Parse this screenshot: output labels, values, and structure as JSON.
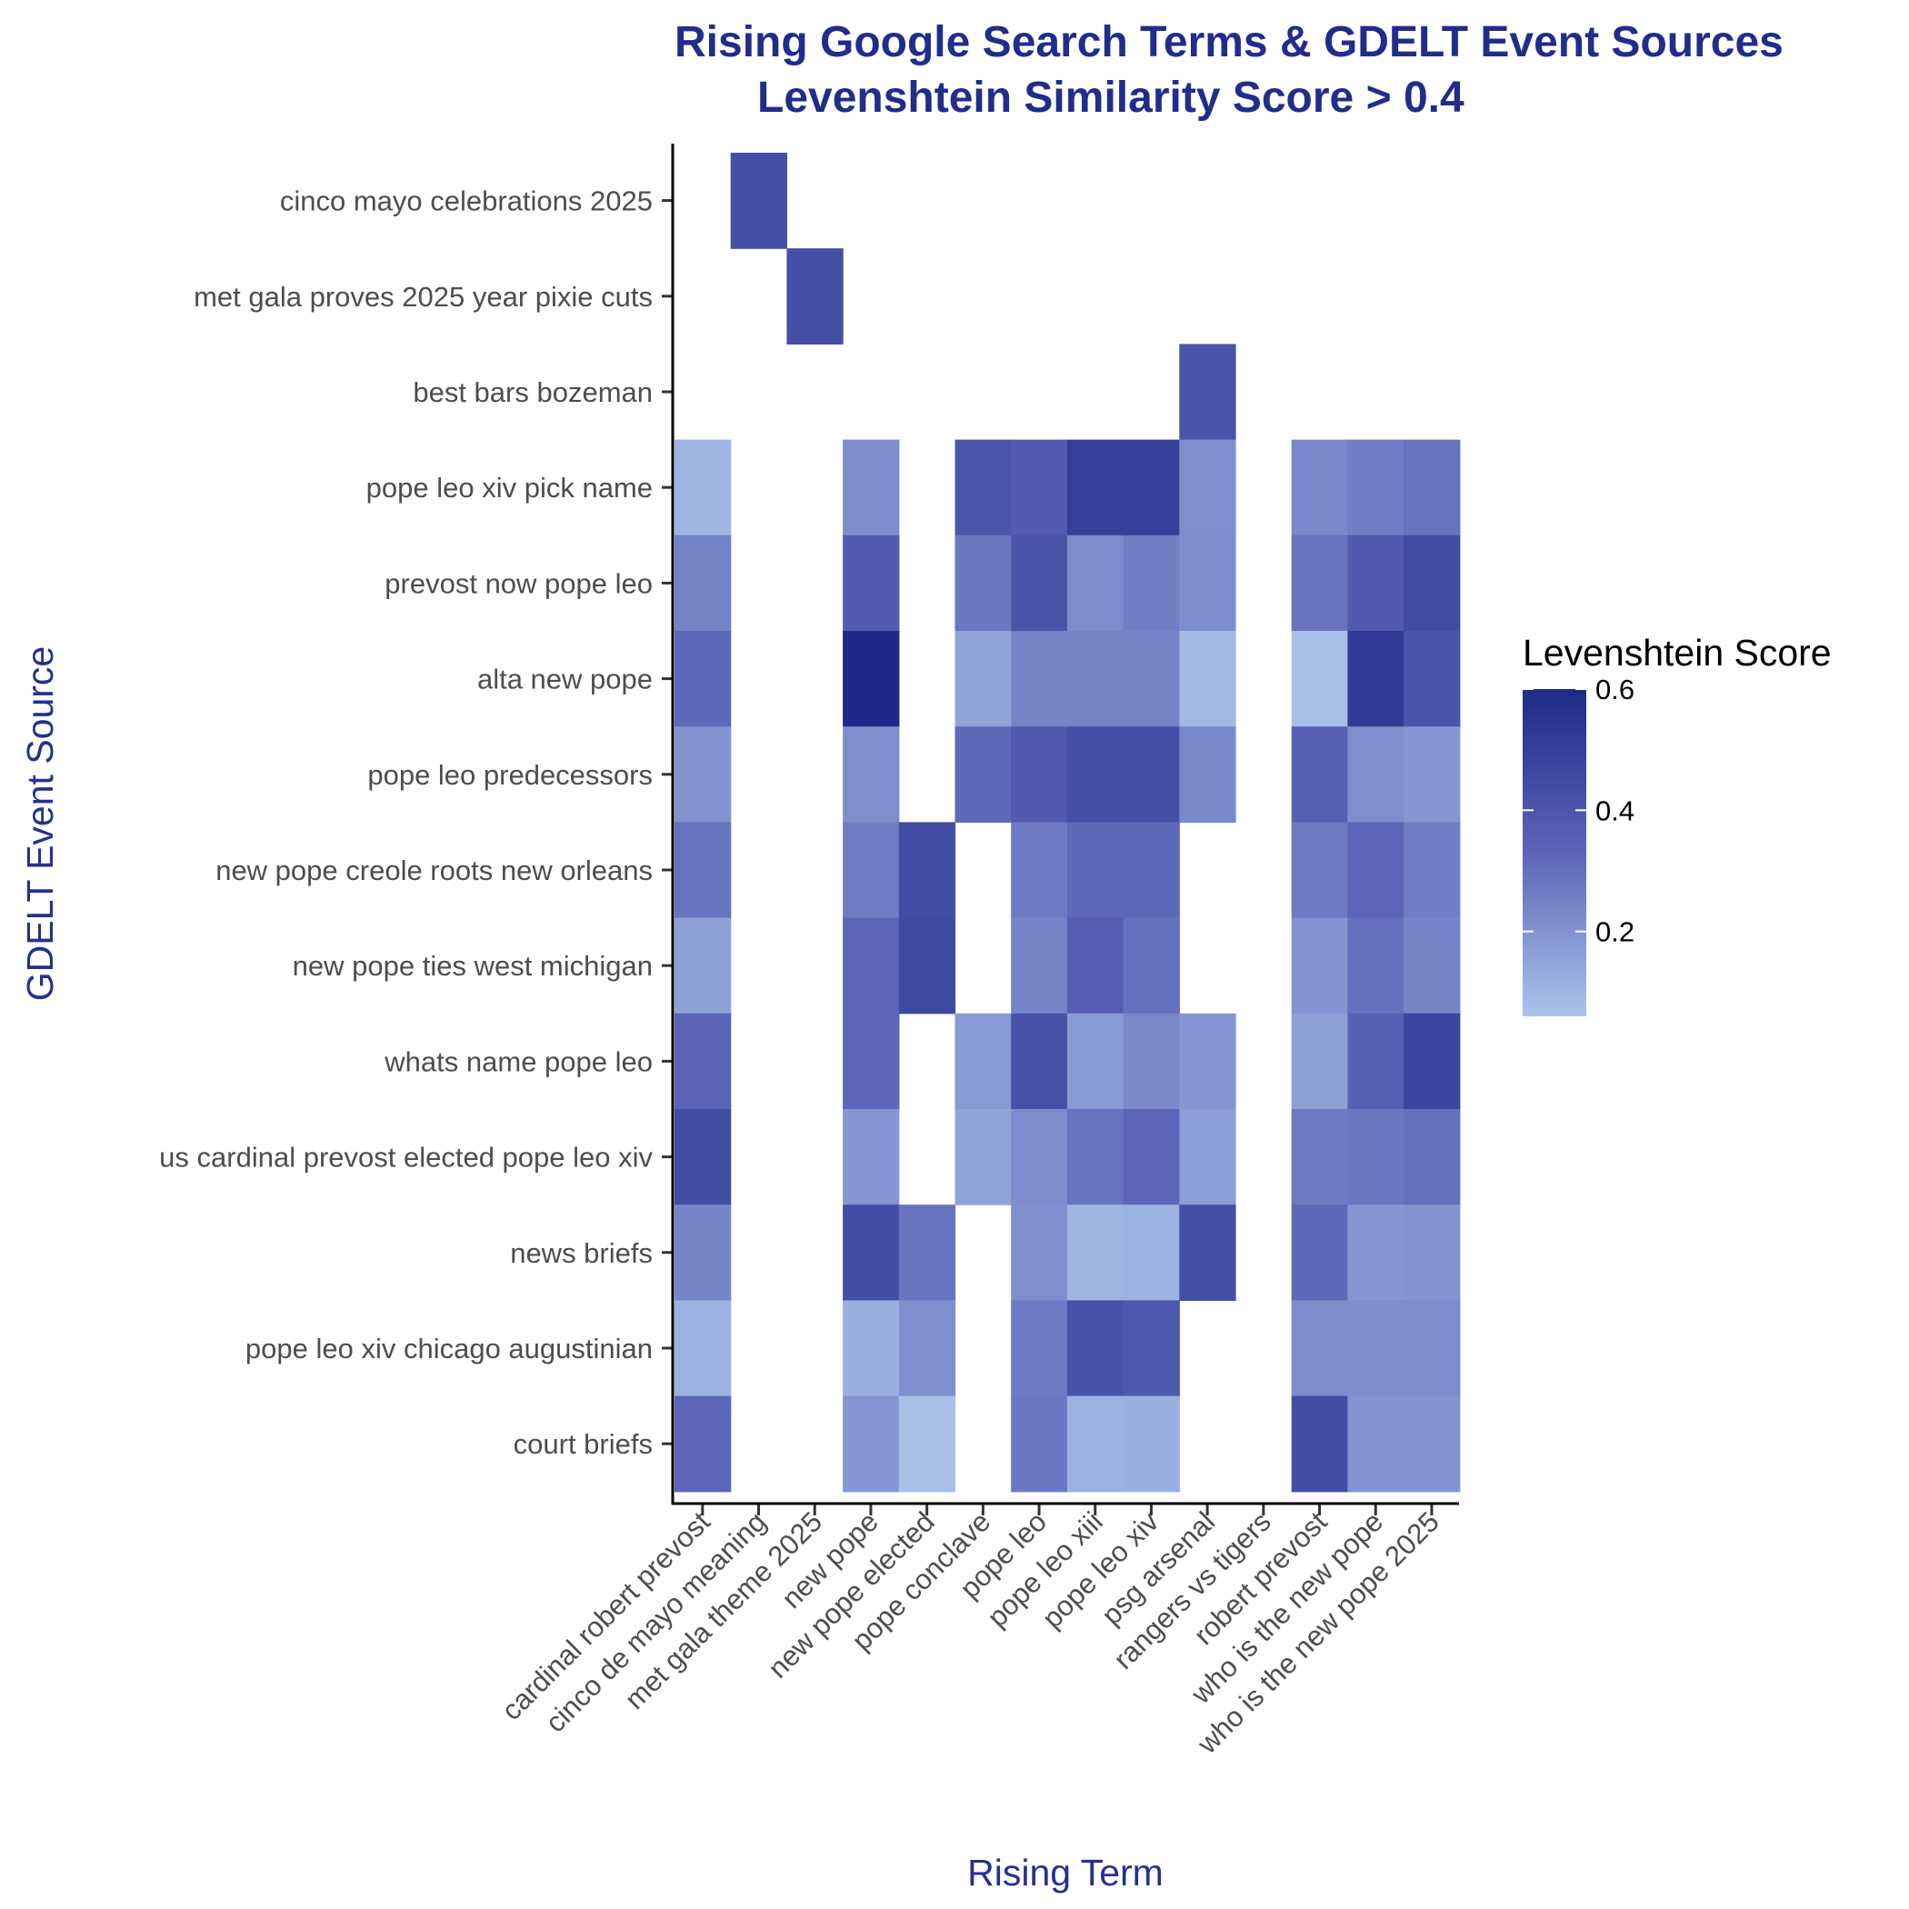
{
  "chart_data": {
    "type": "heatmap",
    "title": "Rising Google Search Terms & GDELT Event Sources",
    "subtitle": "Levenshtein Similarity Score > 0.4",
    "xlabel": "Rising Term",
    "ylabel": "GDELT Event Source",
    "x_categories": [
      "cardinal robert prevost",
      "cinco de mayo meaning",
      "met gala theme 2025",
      "new pope",
      "new pope elected",
      "pope conclave",
      "pope leo",
      "pope leo xiii",
      "pope leo xiv",
      "psg arsenal",
      "rangers vs tigers",
      "robert prevost",
      "who is the new pope",
      "who is the new pope 2025"
    ],
    "y_categories": [
      "cinco mayo celebrations 2025",
      "met gala proves 2025 year pixie cuts",
      "best bars bozeman",
      "pope leo xiv pick name",
      "prevost now pope leo",
      "alta new pope",
      "pope leo predecessors",
      "new pope creole roots new orleans",
      "new pope ties west michigan",
      "whats name pope leo",
      "us cardinal prevost elected pope leo xiv",
      "news briefs",
      "pope leo xiv chicago augustinian",
      "court briefs"
    ],
    "values": [
      [
        null,
        0.43,
        null,
        null,
        null,
        null,
        null,
        null,
        null,
        null,
        null,
        null,
        null,
        null
      ],
      [
        null,
        null,
        0.43,
        null,
        null,
        null,
        null,
        null,
        null,
        null,
        null,
        null,
        null,
        null
      ],
      [
        null,
        null,
        null,
        null,
        null,
        null,
        null,
        null,
        null,
        0.41,
        null,
        null,
        null,
        null
      ],
      [
        0.1,
        null,
        null,
        0.22,
        null,
        0.4,
        0.37,
        0.5,
        0.5,
        0.21,
        null,
        0.23,
        0.26,
        0.29
      ],
      [
        0.25,
        null,
        null,
        0.37,
        null,
        0.28,
        0.41,
        0.22,
        0.26,
        0.22,
        null,
        0.29,
        0.38,
        0.45
      ],
      [
        0.32,
        null,
        null,
        0.6,
        null,
        0.15,
        0.24,
        0.24,
        0.24,
        0.09,
        null,
        0.07,
        0.52,
        0.41
      ],
      [
        0.2,
        null,
        null,
        0.21,
        null,
        0.32,
        0.38,
        0.43,
        0.43,
        0.23,
        null,
        0.35,
        0.21,
        0.19
      ],
      [
        0.29,
        null,
        null,
        0.26,
        0.44,
        null,
        0.27,
        0.32,
        0.32,
        null,
        null,
        0.27,
        0.33,
        0.26
      ],
      [
        0.16,
        null,
        null,
        0.33,
        0.46,
        null,
        0.24,
        0.36,
        0.3,
        null,
        null,
        0.2,
        0.3,
        0.24
      ],
      [
        0.34,
        null,
        null,
        0.33,
        null,
        0.18,
        0.42,
        0.18,
        0.23,
        0.19,
        null,
        0.16,
        0.35,
        0.47
      ],
      [
        0.44,
        null,
        null,
        0.19,
        null,
        0.15,
        0.22,
        0.29,
        0.33,
        0.17,
        null,
        0.27,
        0.28,
        0.3
      ],
      [
        0.24,
        null,
        null,
        0.44,
        0.29,
        null,
        0.21,
        0.1,
        0.11,
        0.43,
        null,
        0.32,
        0.19,
        0.2
      ],
      [
        0.11,
        null,
        null,
        0.12,
        0.21,
        null,
        0.27,
        0.42,
        0.39,
        null,
        null,
        0.22,
        0.22,
        0.22
      ],
      [
        0.33,
        null,
        null,
        0.19,
        0.07,
        null,
        0.28,
        0.11,
        0.12,
        null,
        null,
        0.44,
        0.2,
        0.2
      ]
    ],
    "color_scale": {
      "low": "#abc4ea",
      "mid": "#5c65b8",
      "high": "#1f2a87",
      "domain": [
        0.06,
        0.6
      ]
    },
    "legend": {
      "title": "Levenshtein Score",
      "ticks": [
        {
          "value": 0.6,
          "label": "0.6"
        },
        {
          "value": 0.4,
          "label": "0.4"
        },
        {
          "value": 0.2,
          "label": "0.2"
        }
      ],
      "position": "right"
    }
  }
}
